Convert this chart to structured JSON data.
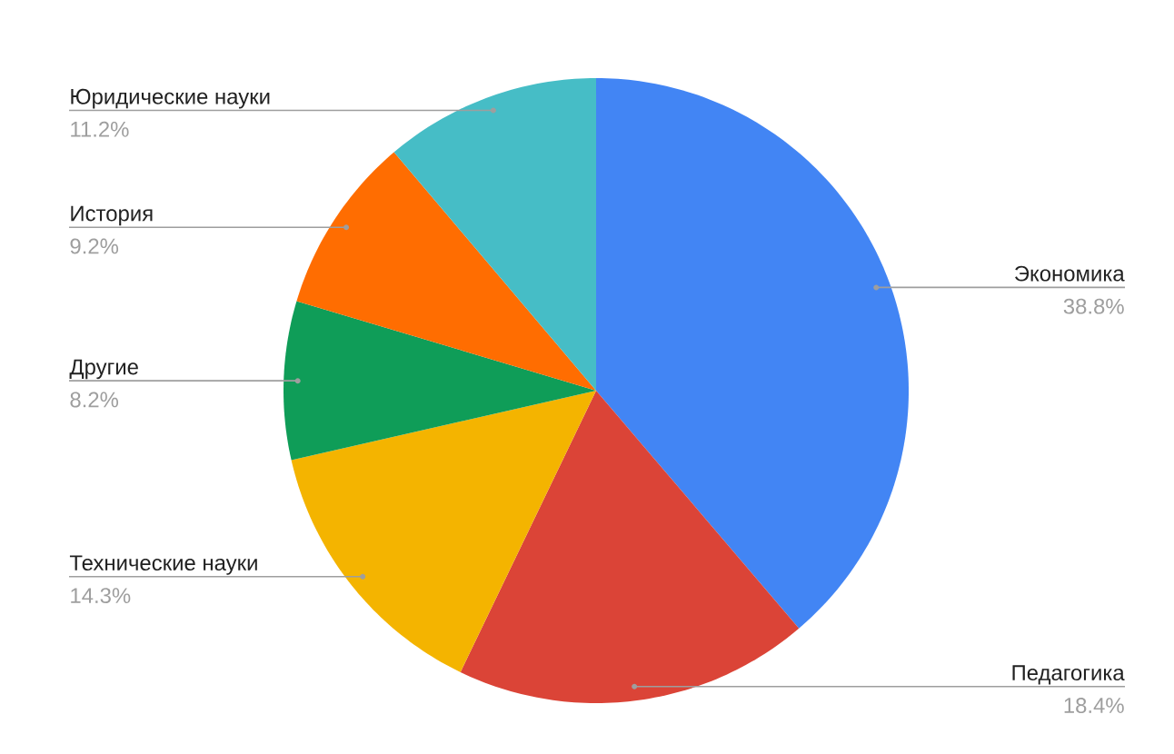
{
  "chart_data": {
    "type": "pie",
    "categories": [
      "Экономика",
      "Педагогика",
      "Технические науки",
      "Другие",
      "История",
      "Юридические науки"
    ],
    "values": [
      38.8,
      18.4,
      14.3,
      8.2,
      9.2,
      11.2
    ],
    "colors": [
      "#4285f4",
      "#db4437",
      "#f4b400",
      "#0f9d58",
      "#ff6d01",
      "#46bdc6"
    ],
    "value_labels": [
      "38.8%",
      "18.4%",
      "14.3%",
      "8.2%",
      "9.2%",
      "11.2%"
    ]
  }
}
